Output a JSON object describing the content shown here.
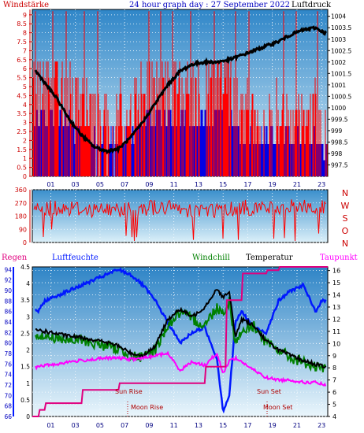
{
  "header": {
    "left": "Windstärke",
    "center": "24 hour graph day : 27 September 2022",
    "right": "Luftdruck"
  },
  "legend": {
    "regen": "Regen",
    "luftfeuchte": "Luftfeuchte",
    "windchill": "Windchill",
    "temperatur": "Temperatur",
    "taupunkt": "Taupunkt"
  },
  "events": {
    "sun_rise": "Sun Rise",
    "moon_rise": "Moon Rise",
    "sun_set": "Sun Set",
    "moon_set": "Moon Set"
  },
  "colors": {
    "wind": "#ff0000",
    "gust_base": "#0000e6",
    "pressure": "#000000",
    "direction": "#ff0000",
    "rain": "#e0007f",
    "humidity": "#0018ff",
    "windchill": "#008000",
    "temperature": "#000000",
    "dewpoint": "#ff00ff",
    "frame": "#000000",
    "header_blue": "#0000c0",
    "legend_red": "#cc0000"
  },
  "chart_data": [
    {
      "type": "line",
      "title": "24 hour graph day : 27 September 2022",
      "x_ticks": [
        "01",
        "03",
        "05",
        "07",
        "09",
        "11",
        "13",
        "15",
        "17",
        "19",
        "21",
        "23"
      ],
      "xlim": [
        0,
        24
      ],
      "series": [
        {
          "name": "Windstärke",
          "axis": "left",
          "y_ticks": [
            "0",
            "0.5",
            "1",
            "1.5",
            "2",
            "2.5",
            "3",
            "3.5",
            "4",
            "4.5",
            "5",
            "5.5",
            "6",
            "6.5",
            "7",
            "7.5",
            "8",
            "8.5",
            "9"
          ],
          "ylim": [
            0,
            9.3
          ],
          "x": [
            0,
            1,
            2,
            3,
            4,
            5,
            6,
            7,
            8,
            9,
            10,
            11,
            12,
            13,
            14,
            15,
            16,
            17,
            18,
            19,
            20,
            21,
            22,
            23,
            24
          ],
          "values": [
            5.5,
            5.5,
            5.5,
            5.5,
            3.7,
            3.7,
            3.7,
            3.7,
            3.7,
            5.5,
            5.5,
            5.5,
            5.5,
            5.5,
            5.5,
            5.5,
            5.5,
            3.7,
            3.7,
            3.7,
            3.7,
            3.7,
            3.7,
            3.7,
            1.8
          ]
        },
        {
          "name": "Luftdruck",
          "axis": "right",
          "y_ticks": [
            "997.5",
            "998",
            "998.5",
            "999",
            "999.5",
            "1000",
            "1000.5",
            "1001",
            "1001.5",
            "1002",
            "1002.5",
            "1003",
            "1003.5",
            "1004"
          ],
          "ylim": [
            997,
            1004.3
          ],
          "x": [
            0,
            1,
            2,
            3,
            4,
            5,
            6,
            7,
            8,
            9,
            10,
            11,
            12,
            13,
            14,
            15,
            16,
            17,
            18,
            19,
            20,
            21,
            22,
            23,
            24
          ],
          "values": [
            1001.8,
            1001.1,
            1000.4,
            999.5,
            998.8,
            998.3,
            998.1,
            998.2,
            998.7,
            999.4,
            1000.2,
            1001.0,
            1001.6,
            1001.9,
            1002.0,
            1002.0,
            1002.1,
            1002.3,
            1002.5,
            1002.7,
            1002.9,
            1003.2,
            1003.4,
            1003.5,
            1003.2
          ]
        }
      ]
    },
    {
      "type": "line",
      "y_ticks": [
        "0",
        "90",
        "180",
        "270",
        "360"
      ],
      "ylim": [
        0,
        360
      ],
      "right_labels": [
        "N",
        "W",
        "S",
        "O",
        "N"
      ],
      "series": [
        {
          "name": "Windrichtung",
          "x": [
            0,
            2,
            4,
            6,
            8,
            10,
            12,
            14,
            16,
            18,
            20,
            22,
            24
          ],
          "values": [
            225,
            240,
            230,
            220,
            235,
            240,
            230,
            220,
            230,
            240,
            235,
            245,
            230
          ]
        }
      ]
    },
    {
      "type": "line",
      "x_ticks": [
        "01",
        "03",
        "05",
        "07",
        "09",
        "11",
        "13",
        "15",
        "17",
        "19",
        "21",
        "23"
      ],
      "xlim": [
        0,
        24
      ],
      "axes": {
        "regen": {
          "ticks": [
            "0",
            "0.5",
            "1",
            "1.5",
            "2",
            "2.5",
            "3",
            "3.5",
            "4",
            "4.5"
          ],
          "ylim": [
            0,
            4.5
          ]
        },
        "luftfeuchte": {
          "ticks": [
            "66",
            "68",
            "70",
            "72",
            "74",
            "76",
            "78",
            "80",
            "82",
            "84",
            "86",
            "88",
            "90",
            "92",
            "94"
          ],
          "ylim": [
            66,
            94.5
          ]
        },
        "temperatur": {
          "ticks": [
            "4",
            "5",
            "6",
            "7",
            "8",
            "9",
            "10",
            "11",
            "12",
            "13",
            "14",
            "15",
            "16"
          ],
          "ylim": [
            4,
            16.3
          ]
        }
      },
      "series": [
        {
          "name": "Regen",
          "axis": "regen",
          "x": [
            0,
            0.5,
            0.6,
            1,
            1.1,
            4,
            4.1,
            7,
            7.1,
            14,
            14.1,
            15.7,
            15.8,
            17,
            17.1,
            19,
            19.1,
            20,
            20.1,
            24
          ],
          "values": [
            0,
            0,
            0.2,
            0.2,
            0.4,
            0.4,
            0.8,
            0.8,
            1.0,
            1.0,
            1.5,
            1.5,
            3.5,
            3.5,
            4.3,
            4.3,
            4.4,
            4.4,
            4.5,
            4.5
          ]
        },
        {
          "name": "Luftfeuchte",
          "axis": "luftfeuchte",
          "x": [
            0,
            0.5,
            1,
            2,
            3,
            4,
            5,
            6,
            7,
            8,
            9,
            10,
            11,
            12,
            13,
            14,
            15,
            15.5,
            16,
            16.5,
            17,
            18,
            19,
            20,
            21,
            22,
            23,
            23.5,
            24
          ],
          "values": [
            87,
            86,
            88,
            89,
            90,
            91,
            92,
            93,
            94,
            93,
            91,
            88,
            84,
            80,
            82,
            83,
            77,
            67,
            70,
            84,
            86,
            83,
            82,
            88,
            90,
            91,
            86,
            88,
            88
          ]
        },
        {
          "name": "Windchill",
          "axis": "temperatur",
          "x": [
            0,
            1,
            2,
            3,
            4,
            5,
            6,
            7,
            8,
            9,
            10,
            11,
            12,
            13,
            14,
            15,
            15.5,
            16,
            16.5,
            17,
            18,
            19,
            20,
            21,
            22,
            23,
            24
          ],
          "values": [
            11,
            10.5,
            10.5,
            10.2,
            10.3,
            10,
            9.8,
            9.5,
            9,
            8.8,
            9.5,
            11.5,
            12.5,
            12,
            11.5,
            13,
            12.5,
            13.5,
            10,
            11,
            11.5,
            10,
            9.5,
            8.8,
            8.5,
            8,
            7.8
          ]
        },
        {
          "name": "Temperatur",
          "axis": "temperatur",
          "x": [
            0,
            1,
            2,
            3,
            4,
            5,
            6,
            7,
            8,
            9,
            10,
            11,
            12,
            13,
            14,
            15,
            15.5,
            16,
            16.5,
            17,
            18,
            19,
            20,
            21,
            22,
            23,
            24
          ],
          "values": [
            11.2,
            11,
            10.8,
            10.6,
            10.5,
            10.3,
            10.1,
            9.8,
            9.2,
            9,
            9.8,
            12,
            12.8,
            12.2,
            13,
            14.5,
            13.8,
            14.2,
            10.5,
            12,
            11.5,
            10.2,
            9.5,
            9,
            8.6,
            8.3,
            8
          ]
        },
        {
          "name": "Taupunkt",
          "axis": "temperatur",
          "x": [
            0,
            1,
            2,
            3,
            4,
            5,
            6,
            7,
            8,
            9,
            10,
            11,
            12,
            13,
            14,
            15,
            15.5,
            16,
            16.5,
            17,
            18,
            19,
            20,
            21,
            22,
            23,
            24
          ],
          "values": [
            8,
            8.2,
            8.3,
            8.5,
            8.6,
            8.7,
            8.8,
            8.8,
            8.7,
            8.8,
            9,
            9.2,
            7.8,
            8.5,
            8.2,
            9.2,
            7.5,
            8.6,
            8.8,
            8.5,
            7.8,
            7.2,
            7,
            7,
            6.8,
            6.8,
            6.5
          ]
        }
      ]
    }
  ]
}
